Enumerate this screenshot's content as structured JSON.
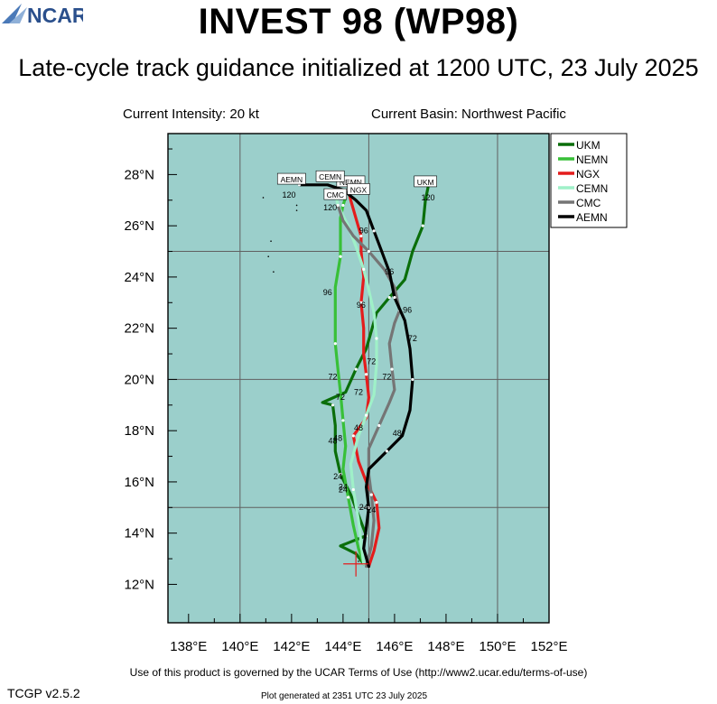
{
  "header": {
    "title": "INVEST 98 (WP98)",
    "subtitle": "Late-cycle track guidance initialized at 1200 UTC, 23 July 2025",
    "intensity": "Current Intensity: 20 kt",
    "basin": "Current Basin: Northwest Pacific"
  },
  "footer": {
    "terms": "Use of this product is governed by the UCAR Terms of Use (http://www2.ucar.edu/terms-of-use)",
    "version": "TCGP v2.5.2",
    "generated": "Plot generated at 2351 UTC   23 July 2025",
    "logo_text": "NCAR"
  },
  "colors": {
    "ocean": "#9bcfcb",
    "grid": "#606060",
    "UKM": "#0a6e0a",
    "NEMN": "#38c038",
    "NGX": "#e41c1c",
    "CEMN": "#9ff0c8",
    "CMC": "#757575",
    "AEMN": "#000000"
  },
  "chart_data": {
    "type": "map-track",
    "xlim": [
      137.2,
      152.0
    ],
    "ylim": [
      10.5,
      29.6
    ],
    "x_ticks": [
      138,
      140,
      142,
      144,
      146,
      148,
      150,
      152
    ],
    "x_tick_labels": [
      "138°E",
      "140°E",
      "142°E",
      "144°E",
      "146°E",
      "148°E",
      "150°E",
      "152°E"
    ],
    "y_ticks": [
      12,
      14,
      16,
      18,
      20,
      22,
      24,
      26,
      28
    ],
    "y_tick_labels": [
      "12°N",
      "14°N",
      "16°N",
      "18°N",
      "20°N",
      "22°N",
      "24°N",
      "26°N",
      "28°N"
    ],
    "grid_lon": [
      140,
      145,
      150
    ],
    "grid_lat": [
      15,
      20,
      25
    ],
    "current_position": [
      144.5,
      12.8
    ],
    "legend": [
      "UKM",
      "NEMN",
      "NGX",
      "CEMN",
      "CMC",
      "AEMN"
    ],
    "legend_position": "top-right",
    "series": [
      {
        "name": "UKM",
        "points": [
          [
            144.8,
            12.8
          ],
          [
            144.5,
            13.2
          ],
          [
            143.9,
            13.5
          ],
          [
            144.9,
            13.9
          ],
          [
            144.6,
            14.7
          ],
          [
            144.3,
            15.5
          ],
          [
            143.9,
            16.3
          ],
          [
            143.7,
            17.2
          ],
          [
            143.7,
            18.2
          ],
          [
            143.6,
            19.0
          ],
          [
            143.2,
            19.1
          ],
          [
            144.1,
            19.5
          ],
          [
            144.5,
            20.4
          ],
          [
            144.9,
            21.2
          ],
          [
            145.3,
            22.6
          ],
          [
            145.8,
            23.2
          ],
          [
            146.4,
            23.9
          ],
          [
            146.7,
            25.0
          ],
          [
            147.1,
            26.0
          ],
          [
            147.2,
            27.0
          ],
          [
            147.3,
            27.5
          ]
        ],
        "labels": [
          {
            "text": "24",
            "lon": 143.8,
            "lat": 16.1
          },
          {
            "text": "48",
            "lon": 143.6,
            "lat": 17.5
          },
          {
            "text": "72",
            "lon": 143.9,
            "lat": 19.2
          },
          {
            "text": "120",
            "lon": 147.3,
            "lat": 27.0
          }
        ],
        "end_label": {
          "text": "UKM",
          "lon": 147.2,
          "lat": 27.7
        }
      },
      {
        "name": "NEMN",
        "points": [
          [
            144.8,
            12.8
          ],
          [
            144.6,
            13.4
          ],
          [
            144.4,
            14.3
          ],
          [
            144.2,
            15.4
          ],
          [
            144.0,
            16.5
          ],
          [
            144.1,
            17.4
          ],
          [
            144.0,
            18.4
          ],
          [
            143.9,
            19.5
          ],
          [
            143.8,
            20.4
          ],
          [
            143.7,
            21.4
          ],
          [
            143.7,
            22.5
          ],
          [
            143.7,
            23.6
          ],
          [
            143.9,
            24.8
          ],
          [
            143.9,
            25.7
          ],
          [
            143.9,
            26.3
          ],
          [
            144.0,
            26.8
          ],
          [
            144.1,
            27.1
          ]
        ],
        "labels": [
          {
            "text": "24",
            "lon": 144.0,
            "lat": 15.7
          },
          {
            "text": "48",
            "lon": 143.8,
            "lat": 17.6
          },
          {
            "text": "72",
            "lon": 143.6,
            "lat": 20.0
          },
          {
            "text": "96",
            "lon": 143.4,
            "lat": 23.3
          }
        ],
        "end_label": {
          "text": "NEMN",
          "lon": 144.3,
          "lat": 27.7
        }
      },
      {
        "name": "NGX",
        "points": [
          [
            145.0,
            12.7
          ],
          [
            145.2,
            13.3
          ],
          [
            145.4,
            14.2
          ],
          [
            145.3,
            15.2
          ],
          [
            144.9,
            16.0
          ],
          [
            144.6,
            16.8
          ],
          [
            144.4,
            17.8
          ],
          [
            144.9,
            18.5
          ],
          [
            145.0,
            19.3
          ],
          [
            144.9,
            20.2
          ],
          [
            144.8,
            21.0
          ],
          [
            144.8,
            22.0
          ],
          [
            144.7,
            23.0
          ],
          [
            144.8,
            24.0
          ],
          [
            144.7,
            25.0
          ],
          [
            144.7,
            25.6
          ],
          [
            144.5,
            26.3
          ],
          [
            144.3,
            27.0
          ],
          [
            144.2,
            27.4
          ]
        ],
        "labels": [
          {
            "text": "24",
            "lon": 145.1,
            "lat": 14.8
          },
          {
            "text": "48",
            "lon": 144.6,
            "lat": 18.0
          },
          {
            "text": "72",
            "lon": 144.6,
            "lat": 19.4
          },
          {
            "text": "96",
            "lon": 144.8,
            "lat": 25.7
          }
        ],
        "end_label": {
          "text": "NGX",
          "lon": 144.6,
          "lat": 27.4
        }
      },
      {
        "name": "CEMN",
        "points": [
          [
            144.8,
            12.8
          ],
          [
            144.7,
            13.6
          ],
          [
            144.6,
            14.5
          ],
          [
            144.4,
            15.7
          ],
          [
            144.3,
            16.7
          ],
          [
            144.6,
            17.8
          ],
          [
            144.9,
            18.6
          ],
          [
            145.2,
            19.4
          ],
          [
            145.3,
            20.6
          ],
          [
            145.3,
            21.6
          ],
          [
            145.2,
            22.6
          ],
          [
            145.0,
            23.5
          ],
          [
            144.8,
            24.3
          ],
          [
            144.5,
            25.2
          ],
          [
            144.2,
            26.0
          ],
          [
            143.8,
            26.8
          ],
          [
            143.7,
            27.3
          ]
        ],
        "labels": [
          {
            "text": "24",
            "lon": 144.0,
            "lat": 15.6
          },
          {
            "text": "72",
            "lon": 145.1,
            "lat": 20.6
          },
          {
            "text": "96",
            "lon": 144.7,
            "lat": 22.8
          }
        ],
        "end_label": {
          "text": "CEMN",
          "lon": 143.5,
          "lat": 27.9
        }
      },
      {
        "name": "CMC",
        "points": [
          [
            144.9,
            12.7
          ],
          [
            145.1,
            13.5
          ],
          [
            145.2,
            14.5
          ],
          [
            145.1,
            15.5
          ],
          [
            145.0,
            16.3
          ],
          [
            145.0,
            17.3
          ],
          [
            145.4,
            18.2
          ],
          [
            145.8,
            19.1
          ],
          [
            146.0,
            19.6
          ],
          [
            145.9,
            20.4
          ],
          [
            145.8,
            21.4
          ],
          [
            146.0,
            22.2
          ],
          [
            146.2,
            22.7
          ],
          [
            146.0,
            23.6
          ],
          [
            145.6,
            24.3
          ],
          [
            145.0,
            25.0
          ],
          [
            144.4,
            25.6
          ],
          [
            144.0,
            26.2
          ],
          [
            143.8,
            26.8
          ]
        ],
        "labels": [
          {
            "text": "72",
            "lon": 145.7,
            "lat": 20.0
          },
          {
            "text": "96",
            "lon": 145.8,
            "lat": 24.1
          },
          {
            "text": "120",
            "lon": 143.5,
            "lat": 26.6
          }
        ],
        "end_label": {
          "text": "CMC",
          "lon": 143.7,
          "lat": 27.2
        }
      },
      {
        "name": "AEMN",
        "points": [
          [
            145.0,
            12.7
          ],
          [
            144.8,
            13.4
          ],
          [
            144.9,
            14.2
          ],
          [
            145.0,
            15.0
          ],
          [
            144.9,
            15.8
          ],
          [
            145.0,
            16.5
          ],
          [
            145.7,
            17.2
          ],
          [
            146.3,
            17.8
          ],
          [
            146.6,
            18.8
          ],
          [
            146.7,
            20.0
          ],
          [
            146.6,
            21.2
          ],
          [
            146.4,
            22.3
          ],
          [
            146.0,
            23.2
          ],
          [
            145.8,
            24.2
          ],
          [
            145.5,
            25.0
          ],
          [
            145.2,
            25.8
          ],
          [
            144.9,
            26.6
          ],
          [
            144.5,
            27.0
          ],
          [
            144.0,
            27.4
          ],
          [
            143.4,
            27.6
          ],
          [
            142.8,
            27.6
          ],
          [
            142.3,
            27.6
          ]
        ],
        "labels": [
          {
            "text": "24",
            "lon": 144.8,
            "lat": 14.9
          },
          {
            "text": "48",
            "lon": 146.1,
            "lat": 17.8
          },
          {
            "text": "72",
            "lon": 146.7,
            "lat": 21.5
          },
          {
            "text": "96",
            "lon": 146.5,
            "lat": 22.6
          },
          {
            "text": "120",
            "lon": 141.9,
            "lat": 27.1
          }
        ],
        "end_label": {
          "text": "AEMN",
          "lon": 142.0,
          "lat": 27.8
        }
      }
    ]
  }
}
